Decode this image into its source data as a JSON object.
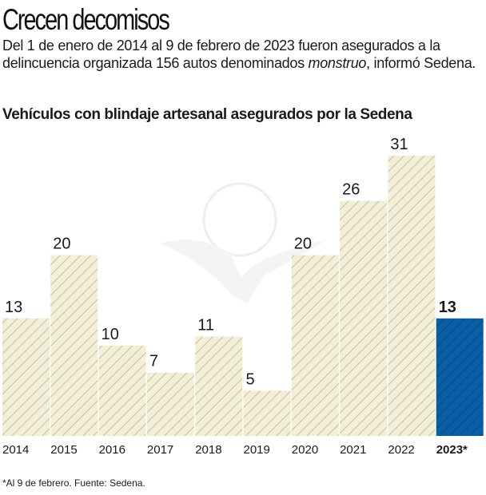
{
  "header": {
    "title": "Crecen decomisos",
    "lede_before": "Del 1 de enero de 2014 al 9 de febrero de 2023 fueron asegurados a la delincuencia organizada 156 autos denominados ",
    "lede_italic": "monstruo",
    "lede_after": ", informó Sedena."
  },
  "chart_data": {
    "type": "bar",
    "title": "Vehículos con blindaje artesanal asegurados por la Sedena",
    "categories": [
      "2014",
      "2015",
      "2016",
      "2017",
      "2018",
      "2019",
      "2020",
      "2021",
      "2022",
      "2023*"
    ],
    "values": [
      13,
      20,
      10,
      7,
      11,
      5,
      20,
      26,
      31,
      13
    ],
    "highlight_index": 9,
    "ylim": [
      0,
      31
    ],
    "grid": false,
    "colors": {
      "default_fill": "#f3efd6",
      "default_hatch": "#b9b497",
      "highlight_fill": "#0a5ea6",
      "highlight_hatch": "#08477f"
    }
  },
  "footnote": "*Al 9 de febrero. Fuente: Sedena."
}
